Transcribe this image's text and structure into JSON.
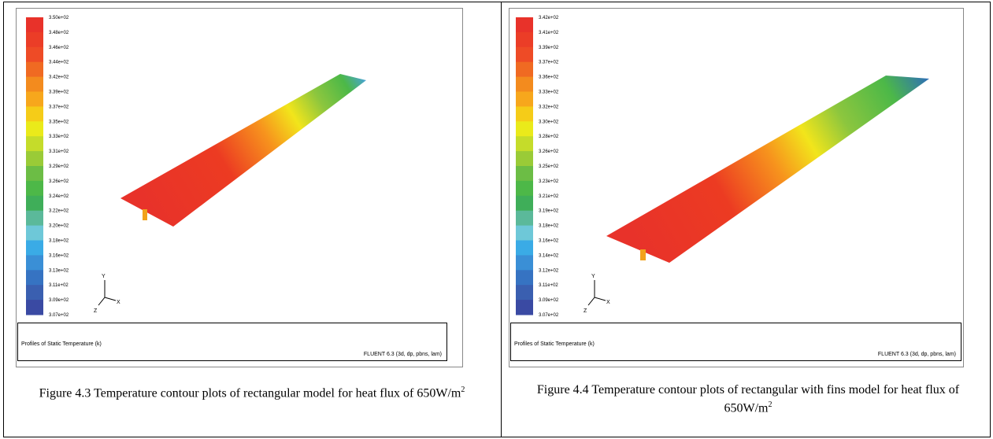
{
  "figures": [
    {
      "legend_labels": [
        "3.50e+02",
        "3.48e+02",
        "3.46e+02",
        "3.44e+02",
        "3.42e+02",
        "3.39e+02",
        "3.37e+02",
        "3.35e+02",
        "3.33e+02",
        "3.31e+02",
        "3.29e+02",
        "3.26e+02",
        "3.24e+02",
        "3.22e+02",
        "3.20e+02",
        "3.18e+02",
        "3.16e+02",
        "3.13e+02",
        "3.11e+02",
        "3.09e+02",
        "3.07e+02"
      ],
      "axes": {
        "y": "Y",
        "z": "Z",
        "x": "X"
      },
      "info_left": "Profiles of Static Temperature (k)",
      "info_right": "FLUENT 6.3 (3d, dp, pbns, lam)",
      "caption": {
        "text": "Figure 4.3 Temperature contour plots of rectangular model for heat flux of 650W/m",
        "sup": "2"
      }
    },
    {
      "legend_labels": [
        "3.42e+02",
        "3.41e+02",
        "3.39e+02",
        "3.37e+02",
        "3.36e+02",
        "3.33e+02",
        "3.32e+02",
        "3.30e+02",
        "3.28e+02",
        "3.26e+02",
        "3.25e+02",
        "3.23e+02",
        "3.21e+02",
        "3.19e+02",
        "3.18e+02",
        "3.16e+02",
        "3.14e+02",
        "3.12e+02",
        "3.11e+02",
        "3.09e+02",
        "3.07e+02"
      ],
      "axes": {
        "y": "Y",
        "z": "Z",
        "x": "X"
      },
      "info_left": "Profiles of Static Temperature (k)",
      "info_right": "FLUENT 6.3 (3d, dp, pbns, lam)",
      "caption": {
        "text": "Figure 4.4 Temperature contour plots of rectangular with fins model for heat flux of 650W/m",
        "sup": "2"
      }
    }
  ]
}
